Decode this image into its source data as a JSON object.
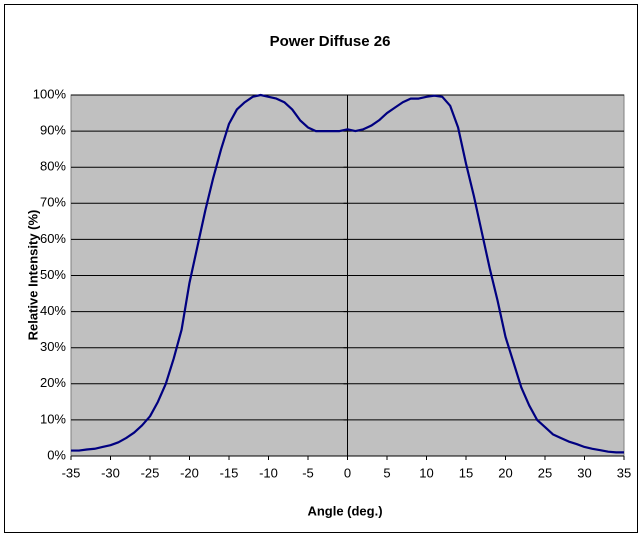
{
  "chart_data": {
    "type": "line",
    "title": "Power Diffuse 26",
    "xlabel": "Angle (deg.)",
    "ylabel": "Relative Intensity (%)",
    "x": [
      -35,
      -34,
      -33,
      -32,
      -31,
      -30,
      -29,
      -28,
      -27,
      -26,
      -25,
      -24,
      -23,
      -22,
      -21,
      -20,
      -19,
      -18,
      -17,
      -16,
      -15,
      -14,
      -13,
      -12,
      -11,
      -10,
      -9,
      -8,
      -7,
      -6,
      -5,
      -4,
      -3,
      -2,
      -1,
      0,
      1,
      2,
      3,
      4,
      5,
      6,
      7,
      8,
      9,
      10,
      11,
      12,
      13,
      14,
      15,
      16,
      17,
      18,
      19,
      20,
      21,
      22,
      23,
      24,
      25,
      26,
      27,
      28,
      29,
      30,
      31,
      32,
      33,
      34,
      35
    ],
    "series": [
      {
        "color": "#000080",
        "values": [
          1.5,
          1.5,
          1.8,
          2,
          2.5,
          3,
          3.8,
          5,
          6.5,
          8.5,
          11,
          15,
          20,
          27,
          35,
          48,
          58,
          68,
          77,
          85,
          92,
          96,
          98,
          99.5,
          100,
          99.5,
          99,
          98,
          96,
          93,
          91,
          90,
          90,
          90,
          90,
          90.5,
          90,
          90.5,
          91.5,
          93,
          95,
          96.5,
          98,
          99,
          99,
          99.5,
          99.8,
          99.5,
          97,
          91,
          81,
          72,
          62,
          52,
          43,
          33,
          26,
          19,
          14,
          10,
          8,
          6,
          5,
          4,
          3.3,
          2.5,
          2,
          1.6,
          1.2,
          1,
          1
        ]
      }
    ],
    "xlim": [
      -35,
      35
    ],
    "xticks": [
      -35,
      -30,
      -25,
      -20,
      -15,
      -10,
      -5,
      0,
      5,
      10,
      15,
      20,
      25,
      30,
      35
    ],
    "ylim": [
      0,
      100
    ],
    "yticks": [
      {
        "value": 0,
        "label": "0%"
      },
      {
        "value": 10,
        "label": "10%"
      },
      {
        "value": 20,
        "label": "20%"
      },
      {
        "value": 30,
        "label": "30%"
      },
      {
        "value": 40,
        "label": "40%"
      },
      {
        "value": 50,
        "label": "50%"
      },
      {
        "value": 60,
        "label": "60%"
      },
      {
        "value": 70,
        "label": "70%"
      },
      {
        "value": 80,
        "label": "80%"
      },
      {
        "value": 90,
        "label": "90%"
      },
      {
        "value": 100,
        "label": "100%"
      }
    ],
    "grid": true
  }
}
